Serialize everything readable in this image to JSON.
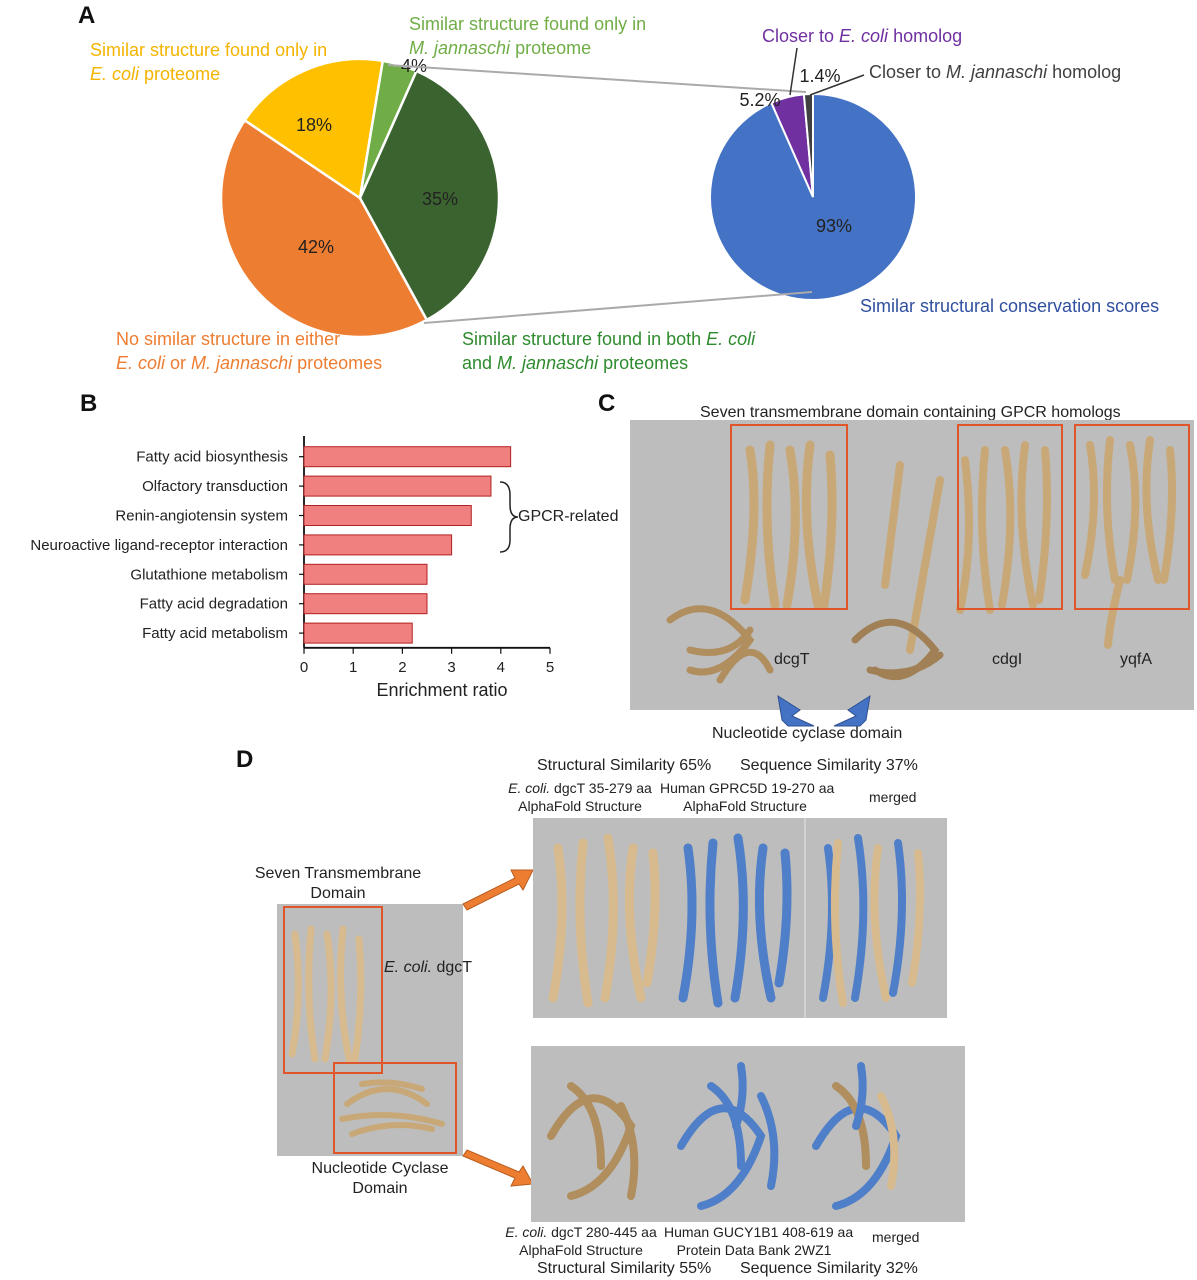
{
  "panels": {
    "a": "A",
    "b": "B",
    "c": "C",
    "d": "D"
  },
  "panel_a": {
    "left_pie_labels": {
      "ecoli_only_1": "Similar structure found only in",
      "ecoli_only_2_it": "E. coli",
      "ecoli_only_2_rest": " proteome",
      "mj_only_1": "Similar structure found only in",
      "mj_only_2_it": "M. jannaschi",
      "mj_only_2_rest": " proteome",
      "none_1": "No similar structure in either",
      "none_2_it_a": "E. coli",
      "none_2_mid": " or ",
      "none_2_it_b": "M. jannaschi",
      "none_2_rest": " proteomes",
      "both_1a": "Similar structure found in both ",
      "both_1_it": "E. coli",
      "both_2a": "and ",
      "both_2_it": "M. jannaschi",
      "both_2_rest": " proteomes"
    },
    "right_pie_labels": {
      "closer_ecoli_a": "Closer to ",
      "closer_ecoli_it": "E. coli",
      "closer_ecoli_rest": " homolog",
      "closer_mj_a": "Closer to ",
      "closer_mj_it": "M. jannaschi",
      "closer_mj_rest": " homolog",
      "similar": "Similar structural conservation scores"
    }
  },
  "panel_b": {
    "gpcr_label": "GPCR-related"
  },
  "panel_c": {
    "title": "Seven transmembrane domain containing GPCR homologs",
    "protein1": "dcgT",
    "protein2": "cdgI",
    "protein3": "yqfA",
    "arrow_label": "Nucleotide cyclase domain"
  },
  "panel_d": {
    "stm_label_1": "Seven Transmembrane",
    "stm_label_2": "Domain",
    "ecoli_dgct_it": "E. coli.",
    "ecoli_dgct_rest": " dgcT",
    "nc_label_1": "Nucleotide Cyclase",
    "nc_label_2": "Domain",
    "top_struct_sim": "Structural Similarity 65%",
    "top_seq_sim": "Sequence Similarity 37%",
    "top_cap1_it": "E. coli.",
    "top_cap1_rest": " dgcT 35-279 aa",
    "top_cap1_b": "AlphaFold Structure",
    "top_cap2_a": "Human GPRC5D 19-270 aa",
    "top_cap2_b": "AlphaFold Structure",
    "top_cap3": "merged",
    "bot_cap1_it": "E. coli.",
    "bot_cap1_rest": " dgcT 280-445 aa",
    "bot_cap1_b": "AlphaFold Structure",
    "bot_cap2_a": "Human GUCY1B1 408-619 aa",
    "bot_cap2_b": "Protein Data Bank 2WZ1",
    "bot_cap3": "merged",
    "bot_struct_sim": "Structural Similarity 55%",
    "bot_seq_sim": "Sequence Similarity 32%"
  },
  "colors": {
    "orange": "#ed7d31",
    "yellow": "#ffc000",
    "light_green": "#70ad47",
    "dark_green": "#3b6330",
    "blue": "#4472c4",
    "purple": "#7030a0",
    "dark_gray": "#404040",
    "bar": "#f08080",
    "protein_tan": "#d2b48c",
    "protein_blue": "#4f7fc8"
  },
  "chart_data": [
    {
      "type": "pie",
      "labels": [
        "No similar structure in either E. coli or M. jannaschi proteomes",
        "Similar structure found only in E. coli proteome",
        "Similar structure found only in M. jannaschi proteome",
        "Similar structure found in both E. coli and M. jannaschi proteomes"
      ],
      "values": [
        42,
        18,
        4,
        35
      ],
      "value_labels": [
        "42%",
        "18%",
        "4%",
        "35%"
      ]
    },
    {
      "type": "pie",
      "labels": [
        "Similar structural conservation scores",
        "Closer to E. coli homolog",
        "Closer to M. jannaschi homolog"
      ],
      "values": [
        93,
        5.2,
        1.4
      ],
      "value_labels": [
        "93%",
        "5.2%",
        "1.4%"
      ]
    },
    {
      "type": "bar",
      "orientation": "horizontal",
      "categories": [
        "Fatty acid biosynthesis",
        "Olfactory transduction",
        "Renin-angiotensin system",
        "Neuroactive ligand-receptor interaction",
        "Glutathione metabolism",
        "Fatty acid degradation",
        "Fatty acid metabolism"
      ],
      "values": [
        4.2,
        3.8,
        3.4,
        3.0,
        2.5,
        2.5,
        2.2
      ],
      "xlabel": "Enrichment ratio",
      "xlim": [
        0,
        5
      ],
      "xticks": [
        "0",
        "1",
        "2",
        "3",
        "4",
        "5"
      ]
    }
  ]
}
